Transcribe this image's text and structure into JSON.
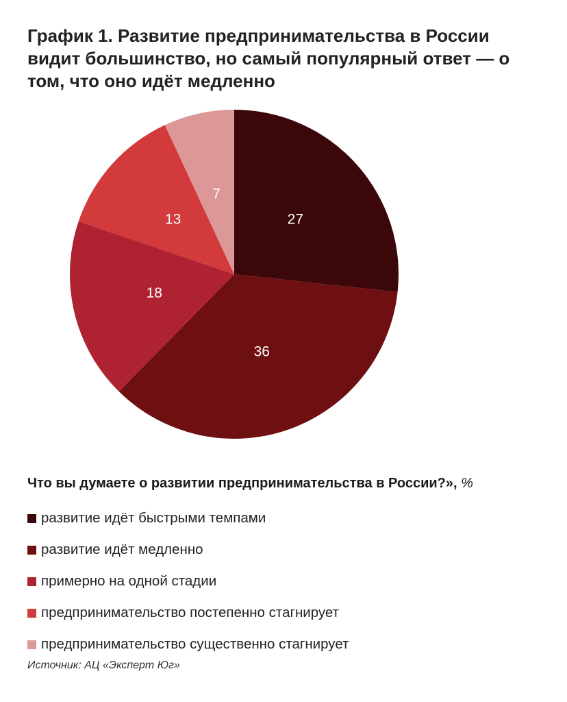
{
  "title": "График 1. Развитие предпринимательства в России видит большинство, но самый популярный ответ — о том, что оно идёт медленно",
  "chart_data": {
    "type": "pie",
    "title": "График 1. Развитие предпринимательства в России видит большинство, но самый популярный ответ — о том, что оно идёт медленно",
    "question": "Что вы думаете о развитии предпринимательства в России?»,",
    "unit": "%",
    "legend_placement": "bottom",
    "slices": [
      {
        "label": "развитие идёт быстрыми темпами",
        "value": 27,
        "color": "#3c0709"
      },
      {
        "label": "развитие идёт медленно",
        "value": 36,
        "color": "#6e1012"
      },
      {
        "label": "примерно на одной стадии",
        "value": 18,
        "color": "#ae2232"
      },
      {
        "label": "предпринимательство постепенно стагнирует",
        "value": 13,
        "color": "#d23a3c"
      },
      {
        "label": "предпринимательство существенно стагнирует",
        "value": 7,
        "color": "#dc9797"
      }
    ]
  },
  "source": "Источник: АЦ «Эксперт Юг»"
}
